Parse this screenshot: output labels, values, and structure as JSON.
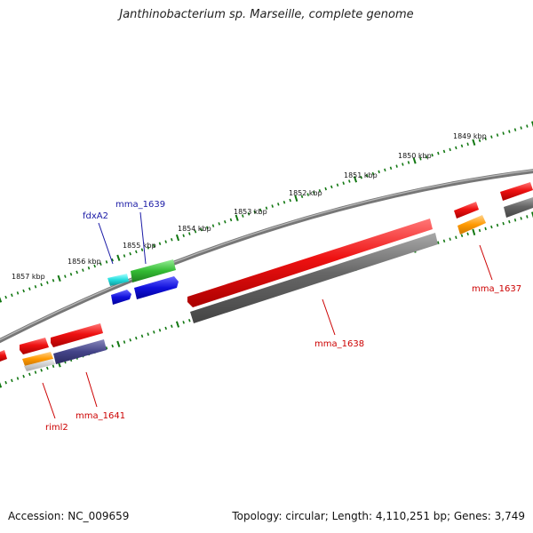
{
  "title": "Janthinobacterium sp. Marseille, complete genome",
  "accession": "Accession: NC_009659",
  "summary": "Topology: circular; Length: 4,110,251 bp; Genes: 3,749",
  "scale_labels": [
    "1849 kbp",
    "1850 kbp",
    "1851 kbp",
    "1852 kbp",
    "1853 kbp",
    "1854 kbp",
    "1855 kbp",
    "1856 kbp",
    "1857 kbp"
  ],
  "gene_labels": {
    "fdxA2": "fdxA2",
    "mma_1639": "mma_1639",
    "mma_1637": "mma_1637",
    "mma_1638": "mma_1638",
    "mma_1641": "mma_1641",
    "riml2": "riml2"
  },
  "colors": {
    "cds_red": "#ee1111",
    "gene_gray": "#666666",
    "trna_orange": "#ff9900",
    "cyan": "#22dddd",
    "green": "#33bb33",
    "blue": "#1111dd",
    "navy": "#444488",
    "tick_green": "#117711",
    "backbone": "#777777"
  }
}
